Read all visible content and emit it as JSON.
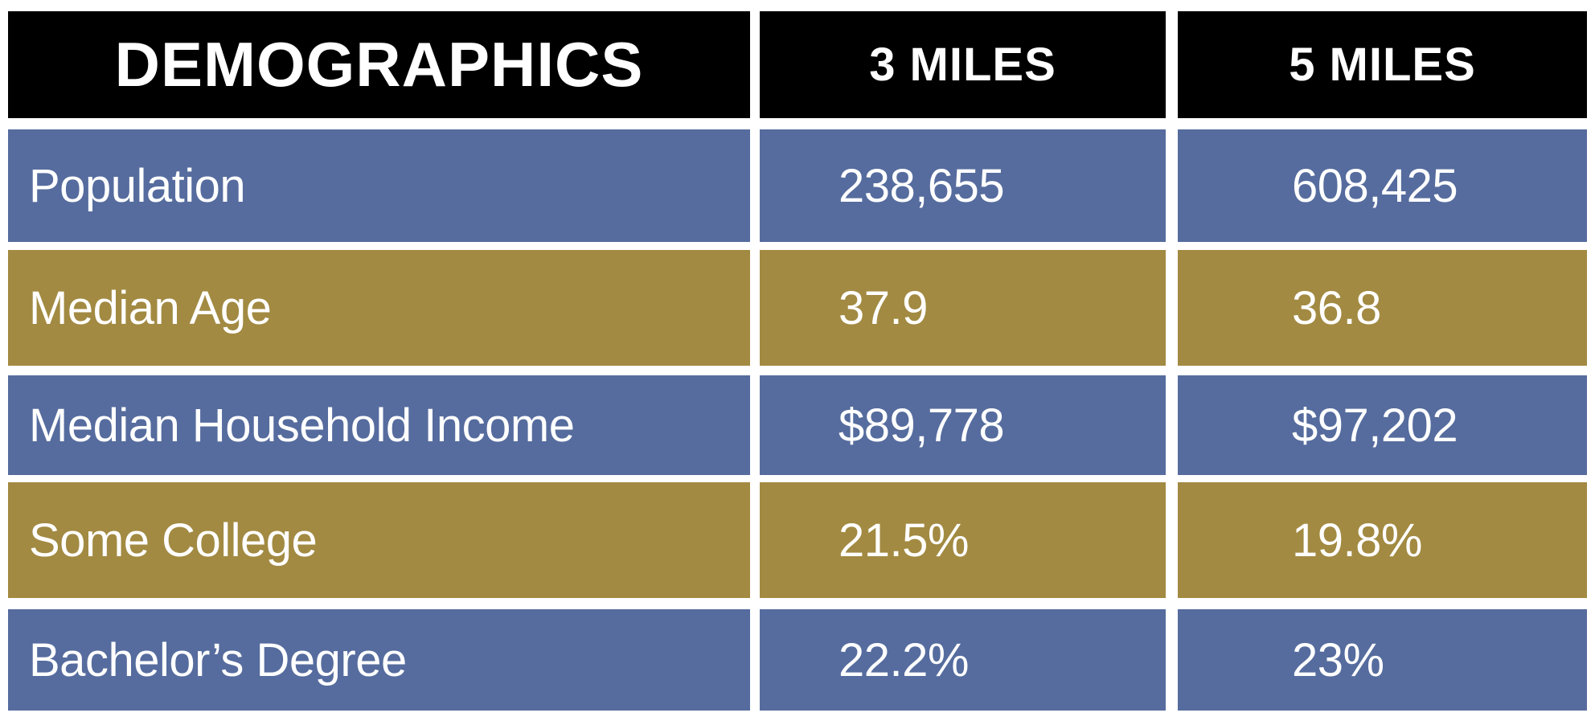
{
  "chart_data": {
    "type": "table",
    "columns": [
      "DEMOGRAPHICS",
      "3 MILES",
      "5 MILES"
    ],
    "rows": [
      {
        "label": "Population",
        "values": [
          "238,655",
          "608,425"
        ]
      },
      {
        "label": "Median Age",
        "values": [
          "37.9",
          "36.8"
        ]
      },
      {
        "label": "Median Household Income",
        "values": [
          "$89,778",
          "$97,202"
        ]
      },
      {
        "label": "Some College",
        "values": [
          "21.5%",
          "19.8%"
        ]
      },
      {
        "label": "Bachelor’s Degree",
        "values": [
          "22.2%",
          "23%"
        ]
      }
    ]
  },
  "colors": {
    "header_bg": "#000000",
    "row_blue": "#566c9e",
    "row_gold": "#a28a42",
    "text": "#ffffff"
  }
}
